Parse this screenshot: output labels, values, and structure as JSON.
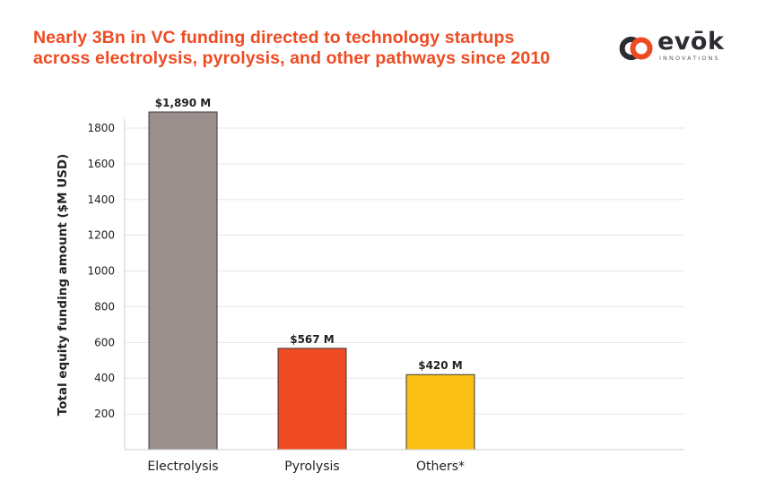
{
  "title_lines": [
    "Nearly 3Bn in VC funding directed to technology startups",
    "across electrolysis, pyrolysis, and other pathways since 2010"
  ],
  "logo": {
    "word": "evōk",
    "subtitle": "INNOVATIONS",
    "icon": "evok-logo-icon",
    "accent": "#ef4b23",
    "dark": "#2b2d33"
  },
  "chart_data": {
    "type": "bar",
    "title": "Nearly 3Bn in VC funding directed to technology startups across electrolysis, pyrolysis, and other pathways since 2010",
    "ylabel": "Total equity funding amount ($M USD)",
    "xlabel": "",
    "categories": [
      "Electrolysis",
      "Pyrolysis",
      "Others*"
    ],
    "values": [
      1890,
      567,
      420
    ],
    "data_labels": [
      "$1,890 M",
      "$567 M",
      "$420 M"
    ],
    "colors": [
      "#9a8f8d",
      "#ef4b23",
      "#fbbf14"
    ],
    "ylim": [
      0,
      1900
    ],
    "yticks": [
      200,
      400,
      600,
      800,
      1000,
      1200,
      1400,
      1600,
      1800
    ],
    "grid": true,
    "legend": "none"
  }
}
